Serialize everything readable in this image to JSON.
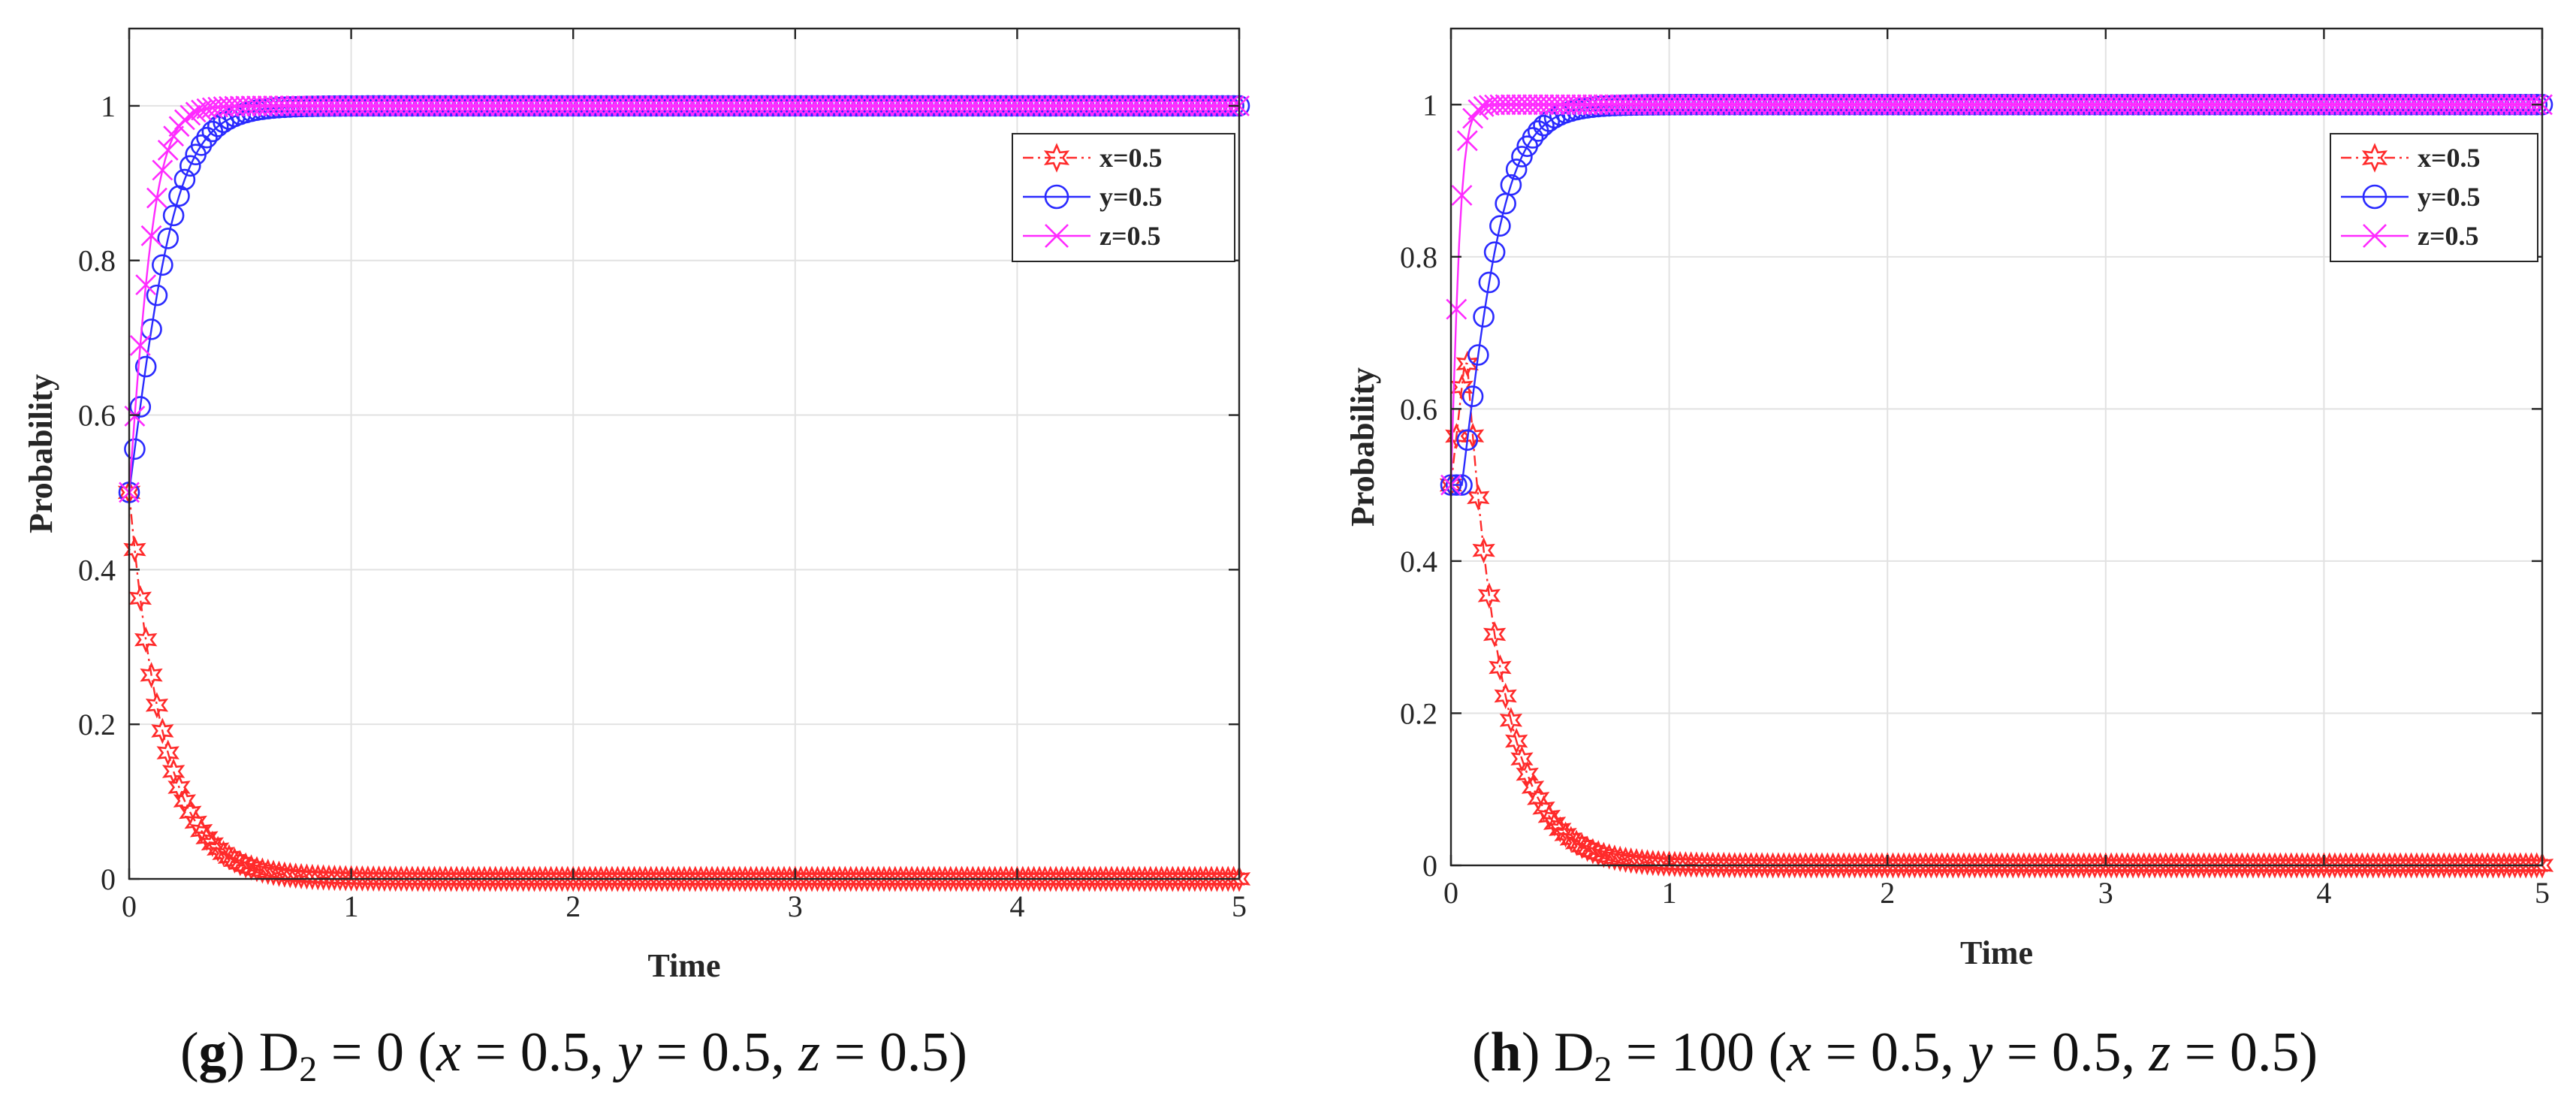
{
  "chart_data": [
    {
      "type": "line",
      "panel": "g",
      "caption": {
        "bold": "g",
        "prefix": " D",
        "sub": "2",
        "rest": " = 0 (",
        "params": [
          [
            "x",
            " = 0.5, "
          ],
          [
            "y",
            " = 0.5, "
          ],
          [
            "z",
            " = 0.5)"
          ]
        ]
      },
      "xlabel": "Time",
      "ylabel": "Probability",
      "xlim": [
        0,
        5
      ],
      "ylim": [
        0,
        1.1
      ],
      "xticks": [
        0,
        1,
        2,
        3,
        4,
        5
      ],
      "yticks": [
        0,
        0.2,
        0.4,
        0.6,
        0.8,
        1
      ],
      "grid": true,
      "legend_position": "top-right",
      "series": [
        {
          "name": "x=0.5",
          "color": "#ff2a2a",
          "marker": "star",
          "linestyle": "dashdot",
          "curve": {
            "start": 0.5,
            "end": 0,
            "rate": -6.4,
            "peak": 0.5
          }
        },
        {
          "name": "y=0.5",
          "color": "#2a2aff",
          "marker": "circle",
          "linestyle": "solid",
          "curve": {
            "start": 0.5,
            "end": 1,
            "rate": 9,
            "peak": 1
          }
        },
        {
          "name": "z=0.5",
          "color": "#ff2aff",
          "marker": "cross",
          "linestyle": "solid",
          "curve": {
            "start": 0.5,
            "end": 1,
            "rate": 16,
            "peak": 1
          }
        }
      ]
    },
    {
      "type": "line",
      "panel": "h",
      "caption": {
        "bold": "h",
        "prefix": " D",
        "sub": "2",
        "rest": " = 100 (",
        "params": [
          [
            "x",
            " = 0.5, "
          ],
          [
            "y",
            " = 0.5, "
          ],
          [
            "z",
            " = 0.5)"
          ]
        ]
      },
      "xlabel": "Time",
      "ylabel": "Probability",
      "xlim": [
        0,
        5
      ],
      "ylim": [
        0,
        1.1
      ],
      "xticks": [
        0,
        1,
        2,
        3,
        4,
        5
      ],
      "yticks": [
        0,
        0.2,
        0.4,
        0.6,
        0.8,
        1
      ],
      "grid": true,
      "legend_position": "top-right",
      "series": [
        {
          "name": "x=0.5",
          "color": "#ff2a2a",
          "marker": "star",
          "linestyle": "dashdot",
          "curve": {
            "start": 0.5,
            "end": 0,
            "rate": -6.2,
            "peak": 0.68,
            "peak_t": 0.07
          }
        },
        {
          "name": "y=0.5",
          "color": "#2a2aff",
          "marker": "circle",
          "linestyle": "solid",
          "curve": {
            "start": 0.5,
            "end": 1,
            "rate": 9.5,
            "peak": 1,
            "delay": 0.05
          }
        },
        {
          "name": "z=0.5",
          "color": "#ff2aff",
          "marker": "cross",
          "linestyle": "solid",
          "curve": {
            "start": 0.5,
            "end": 1,
            "rate": 40,
            "peak": 1
          }
        }
      ]
    }
  ]
}
